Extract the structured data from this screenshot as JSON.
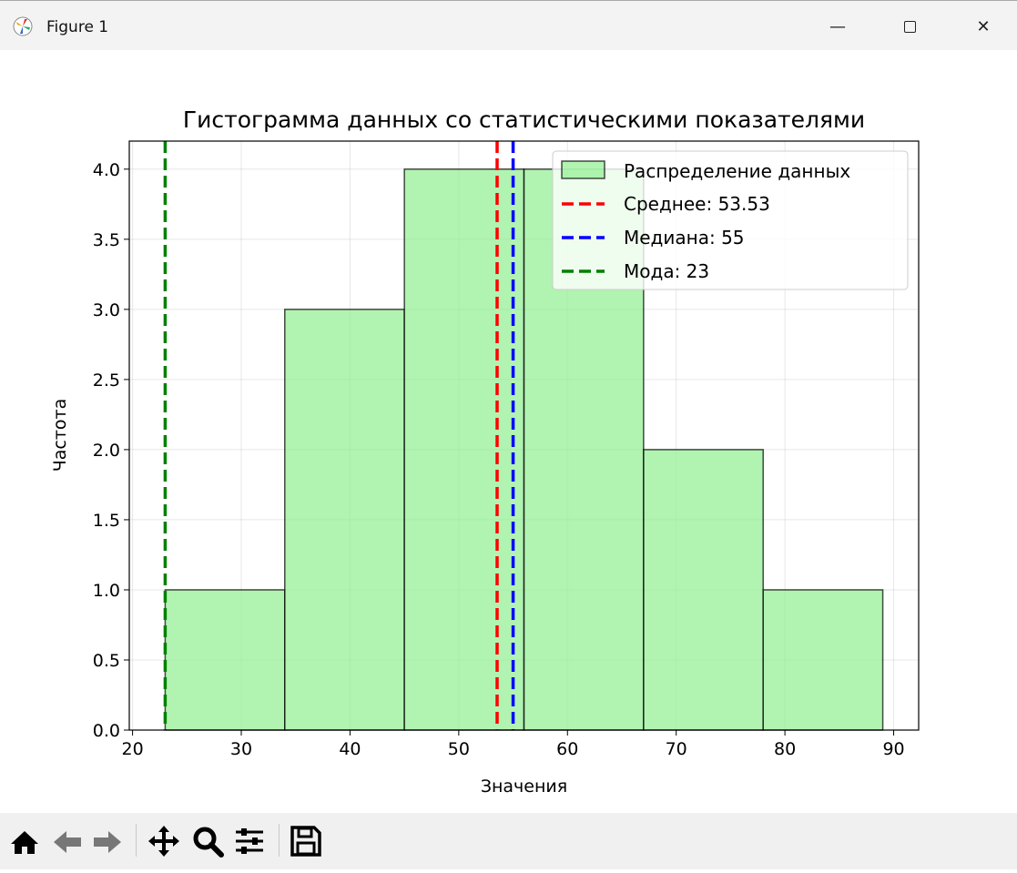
{
  "window": {
    "title": "Figure 1",
    "minimize_icon": "minimize-icon",
    "maximize_icon": "maximize-icon",
    "close_icon": "close-icon"
  },
  "toolbar": {
    "icons": [
      "home-icon",
      "back-arrow-icon",
      "forward-arrow-icon",
      "pan-move-icon",
      "zoom-magnifier-icon",
      "configure-subplots-icon",
      "save-floppy-icon"
    ]
  },
  "chart_data": {
    "type": "bar",
    "title": "Гистограмма данных со статистическими показателями",
    "xlabel": "Значения",
    "ylabel": "Частота",
    "bin_edges": [
      23,
      34,
      45,
      56,
      67,
      78,
      89
    ],
    "values": [
      1,
      3,
      4,
      4,
      2,
      1
    ],
    "bar_color": "#90ee90",
    "bar_edge_color": "#000000",
    "xlim": [
      19.7,
      92.3
    ],
    "ylim": [
      0,
      4.2
    ],
    "xticks": [
      "20",
      "30",
      "40",
      "50",
      "60",
      "70",
      "80",
      "90"
    ],
    "yticks": [
      "0.0",
      "0.5",
      "1.0",
      "1.5",
      "2.0",
      "2.5",
      "3.0",
      "3.5",
      "4.0"
    ],
    "grid": true,
    "legend_position": "top-right",
    "series_name": "Распределение данных",
    "vlines": [
      {
        "name": "Среднее: 53.53",
        "x": 53.53,
        "color": "#ff0000"
      },
      {
        "name": "Медиана: 55",
        "x": 55,
        "color": "#0000ff"
      },
      {
        "name": "Мода: 23",
        "x": 23,
        "color": "#008000"
      }
    ]
  }
}
